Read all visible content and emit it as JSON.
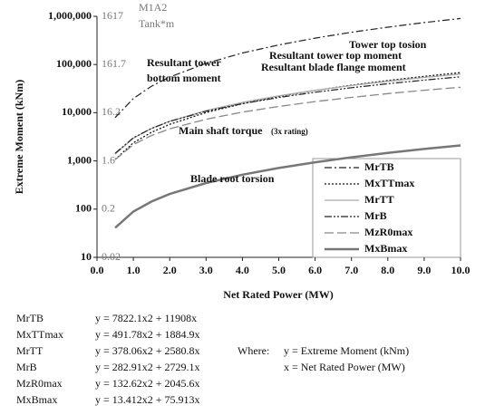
{
  "chart_data": {
    "type": "line",
    "x_label": "Net Rated Power (MW)",
    "y_label": "Extreme Moment (kNm)",
    "y2_label": "M1A2",
    "y2_unit": "Tank*m",
    "log_y": true,
    "grid": false,
    "legend": "lower right",
    "xlim": [
      0,
      10
    ],
    "xticks": [
      {
        "value": 0,
        "label": "0.0"
      },
      {
        "value": 1,
        "label": "1.0"
      },
      {
        "value": 2,
        "label": "2.0"
      },
      {
        "value": 3,
        "label": "3.0"
      },
      {
        "value": 4,
        "label": "4.0"
      },
      {
        "value": 5,
        "label": "5.0"
      },
      {
        "value": 6,
        "label": "6.0"
      },
      {
        "value": 7,
        "label": "7.0"
      },
      {
        "value": 8,
        "label": "8.0"
      },
      {
        "value": 9,
        "label": "9.0"
      },
      {
        "value": 10,
        "label": "10.0"
      }
    ],
    "ylim": [
      10,
      1000000
    ],
    "yticks": [
      10,
      100,
      {
        "value": 1000,
        "label": "1,000"
      },
      {
        "value": 10000,
        "label": "10,000"
      },
      {
        "value": 100000,
        "label": "100,000"
      },
      {
        "value": 1000000,
        "label": "1,000,000"
      }
    ],
    "y2lim": [
      0.01617,
      1617
    ],
    "y2ticks": [
      {
        "value": 0.01617,
        "label": "0.02"
      },
      {
        "value": 0.1617,
        "label": "0.2"
      },
      {
        "value": 1.617,
        "label": "1.6"
      },
      {
        "value": 16.17,
        "label": "16.2"
      },
      161.7,
      1617
    ],
    "x": [
      0.5,
      1,
      1.5,
      2,
      3,
      4,
      5,
      6,
      7,
      8,
      9,
      10
    ],
    "series": [
      {
        "name": "MrTB",
        "color": "#222222",
        "values": [
          7900,
          19700,
          35500,
          55100,
          106000,
          173000,
          255000,
          353000,
          467000,
          596000,
          741000,
          901000
        ]
      },
      {
        "name": "MxTTmax",
        "color": "#111111",
        "values": [
          1070,
          2380,
          3930,
          5740,
          10100,
          15400,
          21700,
          29000,
          37300,
          46600,
          56800,
          68000
        ]
      },
      {
        "name": "MrTT",
        "color": "#aaaaaa",
        "values": [
          1390,
          2960,
          4720,
          6670,
          11100,
          16400,
          22400,
          29100,
          36600,
          44800,
          53900,
          63600
        ]
      },
      {
        "name": "MrB",
        "color": "#222222",
        "values": [
          1440,
          3010,
          4730,
          6590,
          10700,
          15400,
          20700,
          26600,
          33000,
          39900,
          47500,
          55600
        ]
      },
      {
        "name": "MzR0max",
        "color": "#888888",
        "values": [
          1060,
          2180,
          3370,
          4620,
          7330,
          10300,
          13500,
          17000,
          20800,
          24900,
          29200,
          33700
        ]
      },
      {
        "name": "MxBmax",
        "color": "#777777",
        "values": [
          41,
          89,
          144,
          206,
          348,
          518,
          715,
          938,
          1190,
          1470,
          1770,
          2100
        ]
      }
    ],
    "annotations": [
      "Resultant tower",
      "bottom moment",
      "Tower top tosion",
      "Resultant tower top moment",
      "Resultant blade flange moment",
      "Main shaft torque",
      "(3x rating)",
      "Blade root torsion"
    ]
  },
  "equations": [
    {
      "name": "MrTB",
      "equation": "y = 7822.1x2 + 11908x"
    },
    {
      "name": "MxTTmax",
      "equation": "y = 491.78x2 + 1884.9x"
    },
    {
      "name": "MrTT",
      "equation": "y = 378.06x2 + 2580.8x"
    },
    {
      "name": "MrB",
      "equation": "y = 282.91x2 + 2729.1x"
    },
    {
      "name": "MzR0max",
      "equation": "y = 132.62x2 + 2045.6x"
    },
    {
      "name": "MxBmax",
      "equation": "y = 13.412x2 + 75.913x"
    }
  ],
  "where": {
    "label": "Where:",
    "lines": [
      "y = Extreme Moment (kNm)",
      "x = Net Rated Power (MW)"
    ]
  }
}
